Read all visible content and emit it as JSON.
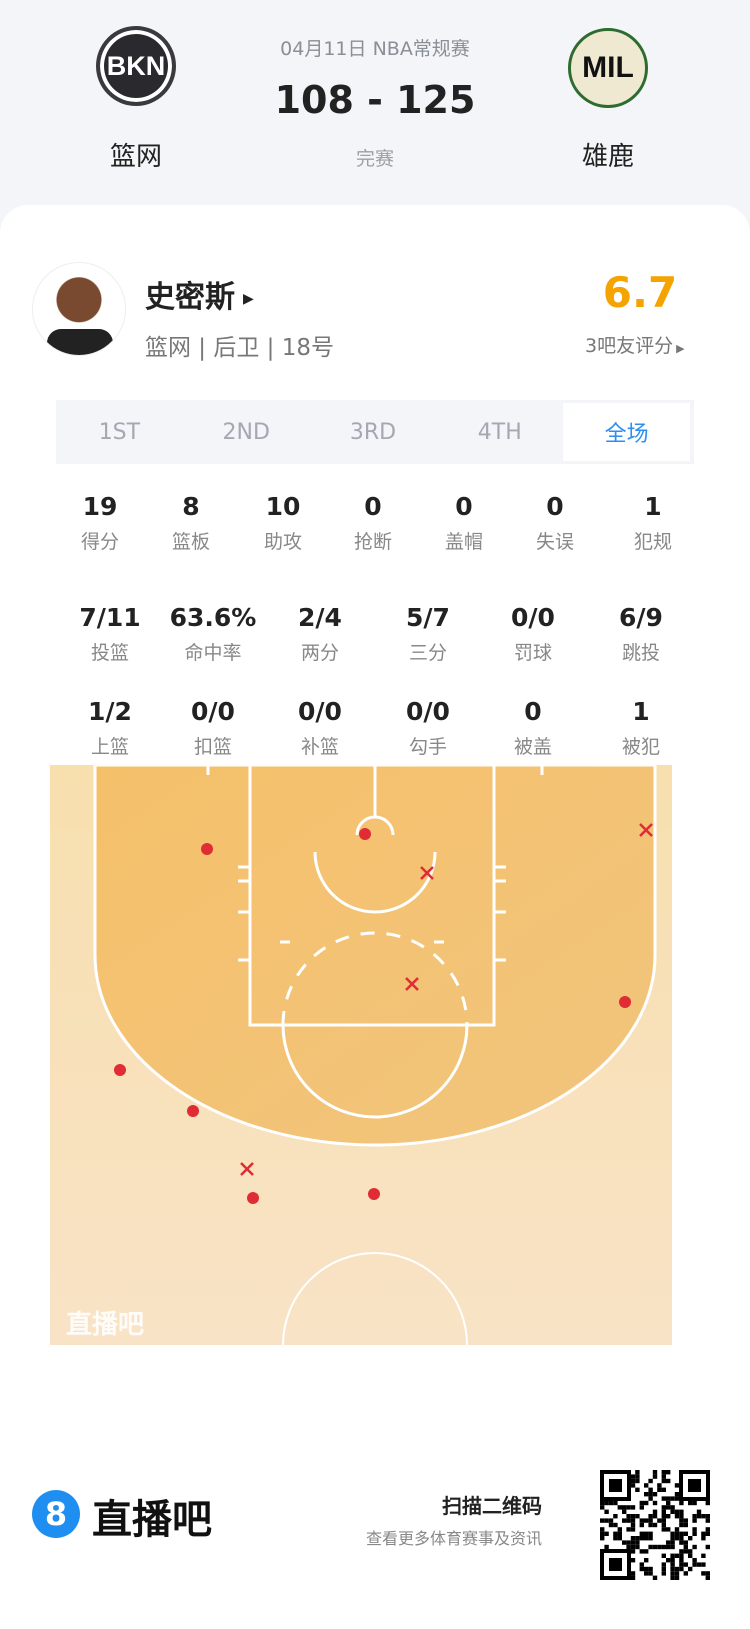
{
  "match": {
    "date_league": "04月11日 NBA常规赛",
    "score": "108 - 125",
    "status": "完赛",
    "home": {
      "abbr": "BKN",
      "name": "篮网"
    },
    "away": {
      "abbr": "MIL",
      "name": "雄鹿"
    }
  },
  "player": {
    "name": "史密斯",
    "info": "篮网 | 后卫 | 18号",
    "rating": "6.7",
    "rating_label": "3吧友评分",
    "rating_color": "#f5a300"
  },
  "tabs": [
    {
      "label": "1ST"
    },
    {
      "label": "2ND"
    },
    {
      "label": "3RD"
    },
    {
      "label": "4TH"
    },
    {
      "label": "全场",
      "active": true
    }
  ],
  "stats_row1": [
    {
      "v": "19",
      "l": "得分"
    },
    {
      "v": "8",
      "l": "篮板"
    },
    {
      "v": "10",
      "l": "助攻"
    },
    {
      "v": "0",
      "l": "抢断"
    },
    {
      "v": "0",
      "l": "盖帽"
    },
    {
      "v": "0",
      "l": "失误"
    },
    {
      "v": "1",
      "l": "犯规"
    }
  ],
  "stats_row2": [
    {
      "v": "7/11",
      "l": "投篮"
    },
    {
      "v": "63.6%",
      "l": "命中率"
    },
    {
      "v": "2/4",
      "l": "两分"
    },
    {
      "v": "5/7",
      "l": "三分"
    },
    {
      "v": "0/0",
      "l": "罚球"
    },
    {
      "v": "6/9",
      "l": "跳投"
    }
  ],
  "stats_row3": [
    {
      "v": "1/2",
      "l": "上篮"
    },
    {
      "v": "0/0",
      "l": "扣篮"
    },
    {
      "v": "0/0",
      "l": "补篮"
    },
    {
      "v": "0/0",
      "l": "勾手"
    },
    {
      "v": "0",
      "l": "被盖"
    },
    {
      "v": "1",
      "l": "被犯"
    }
  ],
  "shot_chart": {
    "watermark": "直播吧",
    "made_color": "#e02c35",
    "missed_color": "#e02c35",
    "shots": [
      "made",
      "made",
      "made",
      "made",
      "made",
      "made",
      "made",
      "missed",
      "missed",
      "missed",
      "missed"
    ]
  },
  "footer": {
    "brand": "直播吧",
    "brand_icon": "8",
    "scan": "扫描二维码",
    "sub": "查看更多体育赛事及资讯",
    "brand_color": "#1e8ef0"
  }
}
